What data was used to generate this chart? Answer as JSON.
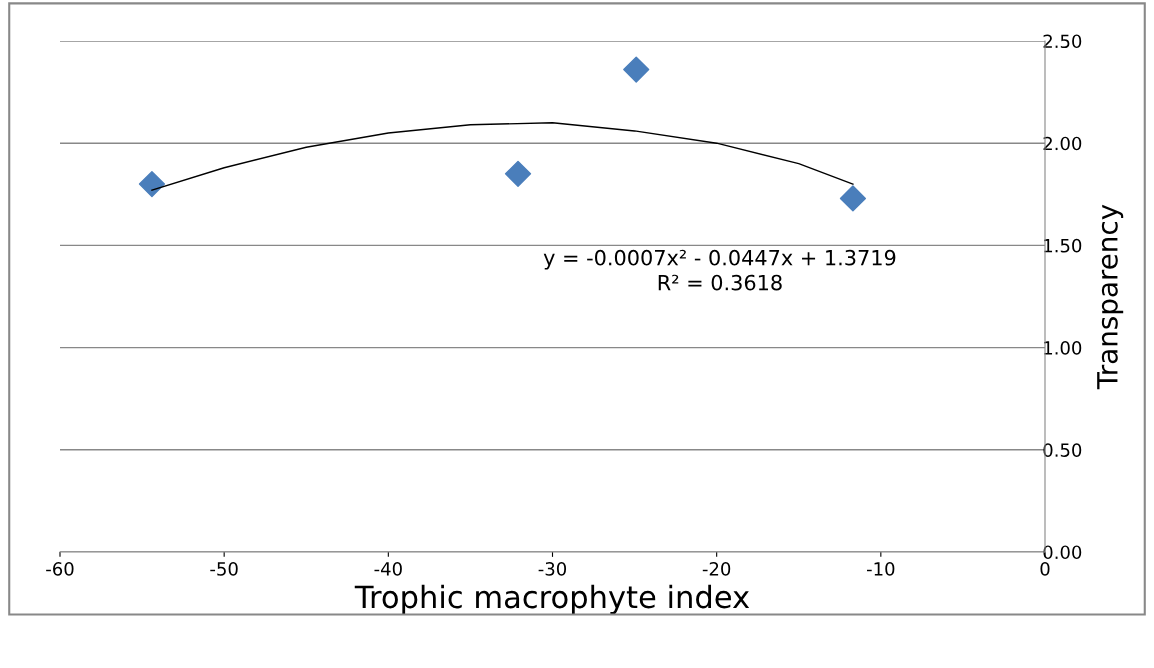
{
  "chart_data": {
    "type": "scatter",
    "xlabel": "Trophic macrophyte index",
    "ylabel": "Transparency",
    "series": [
      {
        "color": "#4a7ebb",
        "x": [
          -54.4,
          -32.1,
          -24.9,
          -11.7
        ],
        "values": [
          1.8,
          1.85,
          2.36,
          1.73
        ]
      },
      {
        "type": "line",
        "color": "#000000",
        "marker": "none",
        "x": [
          -54.4,
          -50,
          -45,
          -40,
          -35,
          -30,
          -25,
          -20,
          -15,
          -11.7
        ],
        "values": [
          1.77,
          1.88,
          1.98,
          2.05,
          2.09,
          2.1,
          2.06,
          2.0,
          1.9,
          1.8
        ]
      }
    ],
    "annotations": [
      "y = -0.0007x² - 0.0447x + 1.3719",
      "R² = 0.3618"
    ],
    "xlim": [
      -60,
      0
    ],
    "xticks": [
      -60,
      -50,
      -40,
      -30,
      -20,
      -10,
      0
    ],
    "ylim": [
      0,
      2.5
    ],
    "yticks": [
      {
        "value": 0,
        "label": "0.00"
      },
      {
        "value": 0.5,
        "label": "0.50"
      },
      {
        "value": 1,
        "label": "1.00"
      },
      {
        "value": 1.5,
        "label": "1.50"
      },
      {
        "value": 2,
        "label": "2.00"
      },
      {
        "value": 2.5,
        "label": "2.50"
      }
    ],
    "grid": "y",
    "marker": "diamond",
    "legend": false
  }
}
